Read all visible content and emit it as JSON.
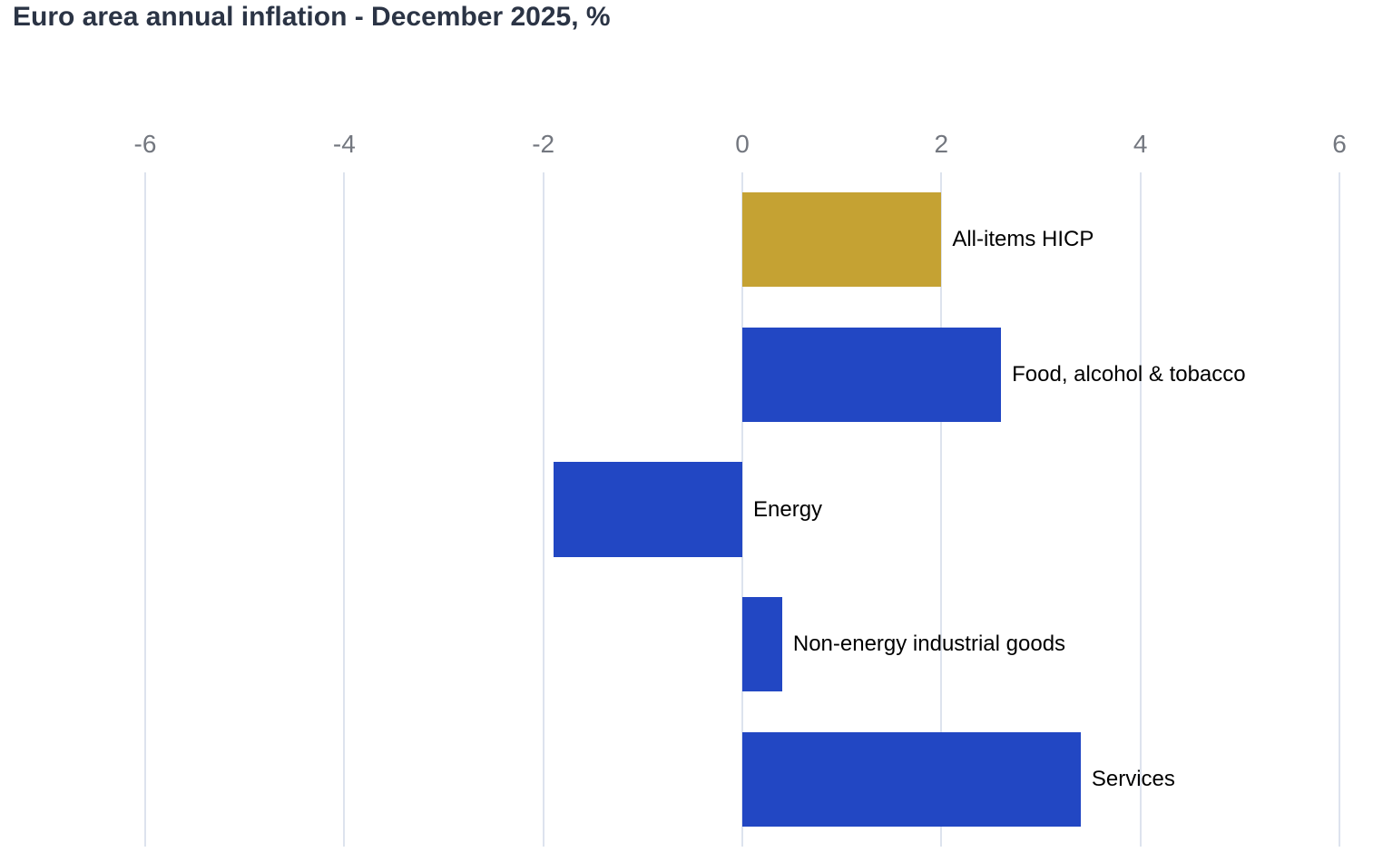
{
  "page": {
    "title": "Euro area annual inflation - December 2025, %"
  },
  "colors": {
    "title_text": "#2b3445",
    "tick_text": "#73777f",
    "gridline": "#dde3ee",
    "label_text": "#000000",
    "highlight_bar": "#c5a233",
    "default_bar": "#2247c3"
  },
  "chart_data": {
    "type": "bar",
    "orientation": "horizontal",
    "title": "Euro area annual inflation - December 2025, %",
    "categories": [
      "All-items HICP",
      "Food, alcohol & tobacco",
      "Energy",
      "Non-energy industrial goods",
      "Services"
    ],
    "values": [
      2.0,
      2.6,
      -1.9,
      0.4,
      3.4
    ],
    "bar_colors": [
      "#c5a233",
      "#2247c3",
      "#2247c3",
      "#2247c3",
      "#2247c3"
    ],
    "xlabel": "",
    "ylabel": "",
    "xlim": [
      -6,
      6
    ],
    "xticks": [
      -6,
      -4,
      -2,
      0,
      2,
      4,
      6
    ],
    "tick_position": "top",
    "grid": "vertical",
    "legend": "none",
    "value_labels": "none",
    "category_label_position": "right-of-bar"
  }
}
